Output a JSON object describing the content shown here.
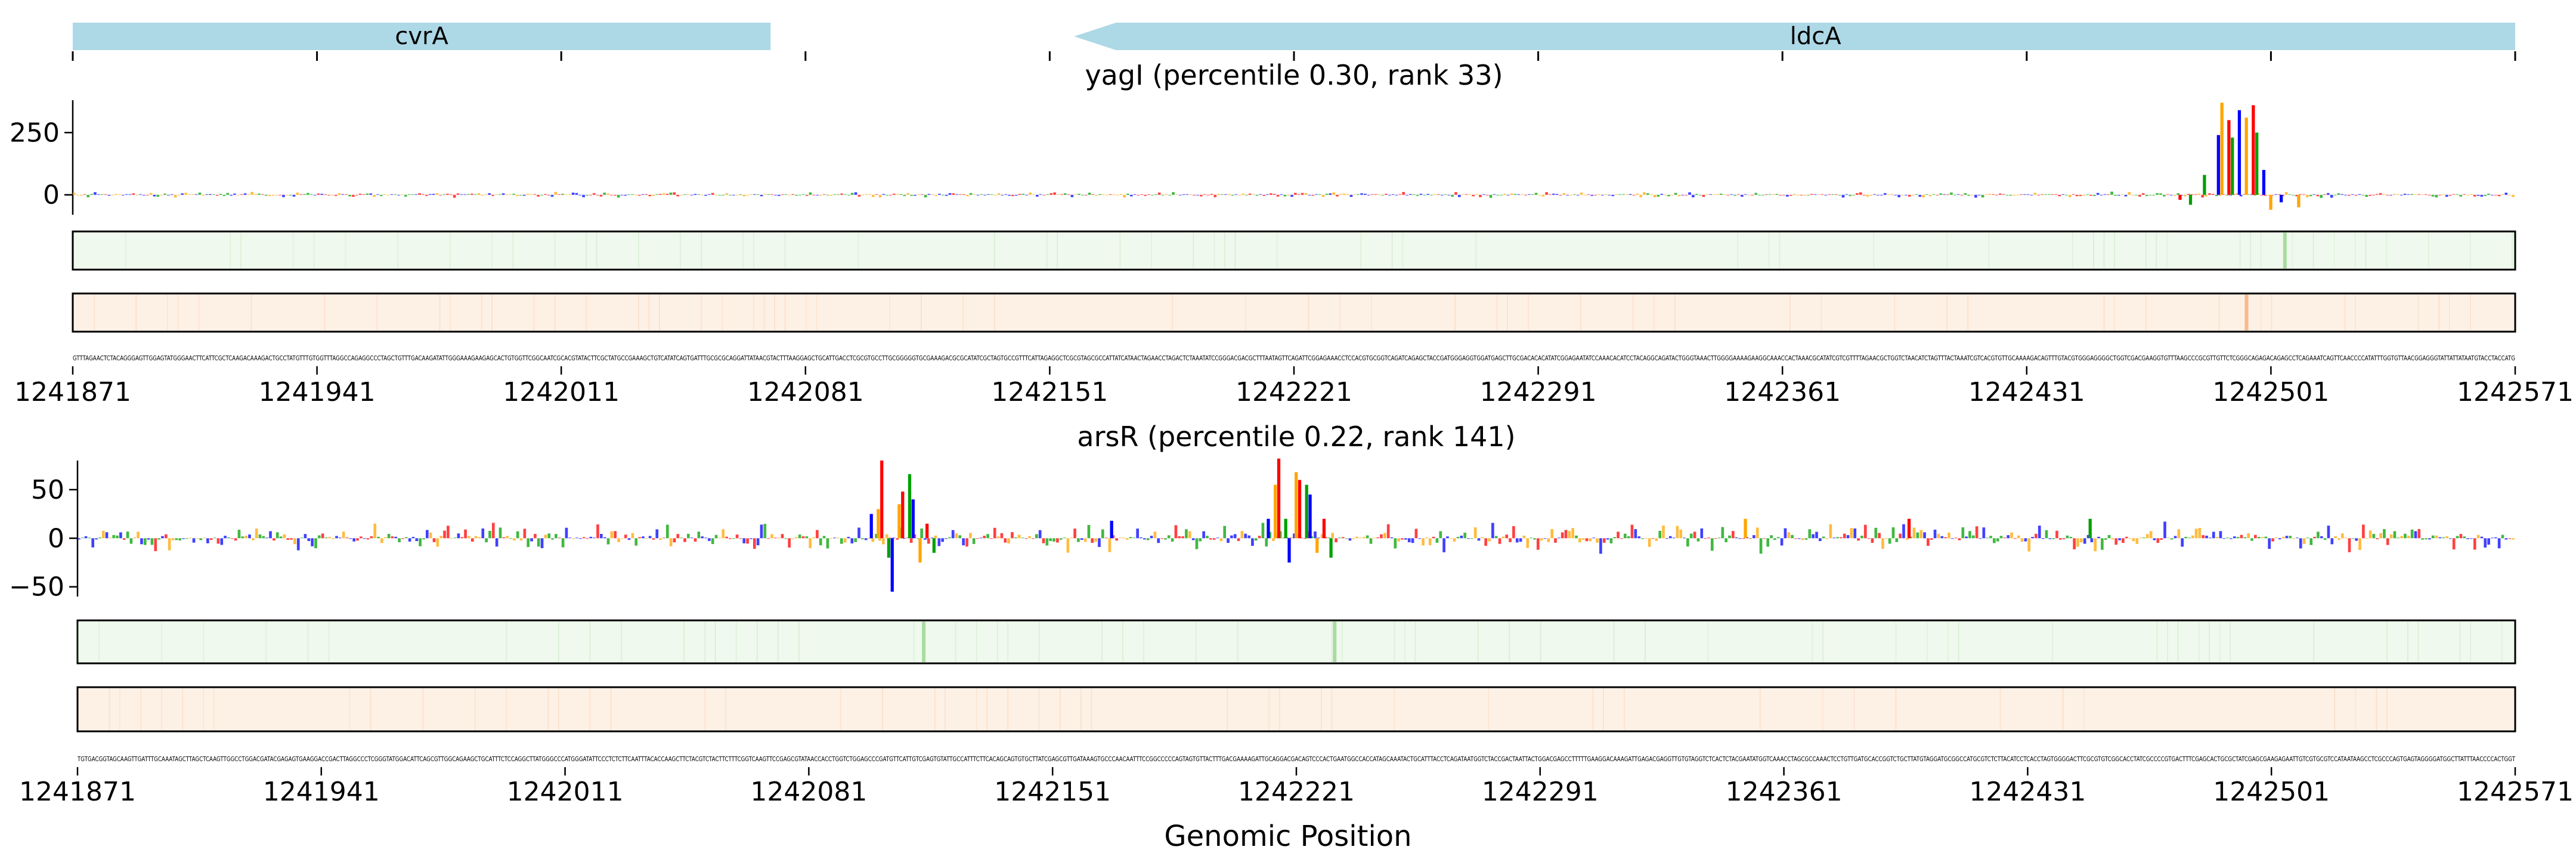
{
  "chart_data": {
    "type": "line",
    "xlabel": "Genomic Position",
    "xlim": [
      1241871,
      1242571
    ],
    "x_ticks": [
      "1241871",
      "1241941",
      "1242011",
      "1242081",
      "1242151",
      "1242221",
      "1242291",
      "1242361",
      "1242431",
      "1242501",
      "1242571"
    ],
    "genes": [
      {
        "name": "cvrA",
        "start": 1241871,
        "end": 1242071,
        "strand": "+",
        "color": "#add8e6"
      },
      {
        "name": "ldcA",
        "start": 1242158,
        "end": 1242571,
        "strand": "-",
        "color": "#add8e6"
      }
    ],
    "base_colors": {
      "A": "#00a000",
      "C": "#0000ff",
      "G": "#ffa500",
      "T": "#ff0000"
    },
    "panels": [
      {
        "title": "yagI (percentile 0.30, rank 33)",
        "ylim": [
          -80,
          380
        ],
        "y_ticks": [
          0,
          250
        ],
        "baseline_scale": 6,
        "peaks": [
          {
            "x": 1242482,
            "y": 80
          },
          {
            "x": 1242486,
            "y": 240
          },
          {
            "x": 1242487,
            "y": 370
          },
          {
            "x": 1242489,
            "y": 300
          },
          {
            "x": 1242490,
            "y": 230
          },
          {
            "x": 1242492,
            "y": 340
          },
          {
            "x": 1242494,
            "y": 310
          },
          {
            "x": 1242496,
            "y": 360
          },
          {
            "x": 1242497,
            "y": 250
          },
          {
            "x": 1242499,
            "y": 100
          },
          {
            "x": 1242501,
            "y": -60
          },
          {
            "x": 1242475,
            "y": -20
          },
          {
            "x": 1242478,
            "y": -40
          },
          {
            "x": 1242504,
            "y": -30
          },
          {
            "x": 1242509,
            "y": -50
          }
        ],
        "track1": {
          "color": "#f0f9ee",
          "highlight_color": "#a8dc9f",
          "highlights": [
            1242505
          ]
        },
        "track2": {
          "color": "#fdf1e6",
          "highlight_color": "#f9b98a",
          "highlights": [
            1242494
          ]
        }
      },
      {
        "title": "arsR (percentile 0.22, rank 141)",
        "ylim": [
          -60,
          80
        ],
        "y_ticks": [
          -50,
          0,
          50
        ],
        "baseline_scale": 8,
        "peaks": [
          {
            "x": 1242099,
            "y": 25
          },
          {
            "x": 1242101,
            "y": 30
          },
          {
            "x": 1242102,
            "y": 80
          },
          {
            "x": 1242104,
            "y": -20
          },
          {
            "x": 1242105,
            "y": -55
          },
          {
            "x": 1242107,
            "y": 35
          },
          {
            "x": 1242108,
            "y": 48
          },
          {
            "x": 1242110,
            "y": 66
          },
          {
            "x": 1242111,
            "y": 40
          },
          {
            "x": 1242113,
            "y": -25
          },
          {
            "x": 1242115,
            "y": 15
          },
          {
            "x": 1242117,
            "y": -15
          },
          {
            "x": 1242213,
            "y": 20
          },
          {
            "x": 1242215,
            "y": 55
          },
          {
            "x": 1242216,
            "y": 82
          },
          {
            "x": 1242218,
            "y": 20
          },
          {
            "x": 1242219,
            "y": -25
          },
          {
            "x": 1242221,
            "y": 68
          },
          {
            "x": 1242222,
            "y": 60
          },
          {
            "x": 1242224,
            "y": 55
          },
          {
            "x": 1242225,
            "y": 45
          },
          {
            "x": 1242227,
            "y": -15
          },
          {
            "x": 1242229,
            "y": 20
          },
          {
            "x": 1242231,
            "y": -20
          },
          {
            "x": 1242168,
            "y": 18
          },
          {
            "x": 1242350,
            "y": 20
          },
          {
            "x": 1242397,
            "y": 20
          },
          {
            "x": 1242449,
            "y": 20
          }
        ],
        "track1": {
          "color": "#f0f9ee",
          "highlight_color": "#a8dc9f",
          "highlights": [
            1242114,
            1242232
          ]
        },
        "track2": {
          "color": "#fdf1e6",
          "highlight_color": "#f9b98a",
          "highlights": []
        }
      }
    ]
  }
}
